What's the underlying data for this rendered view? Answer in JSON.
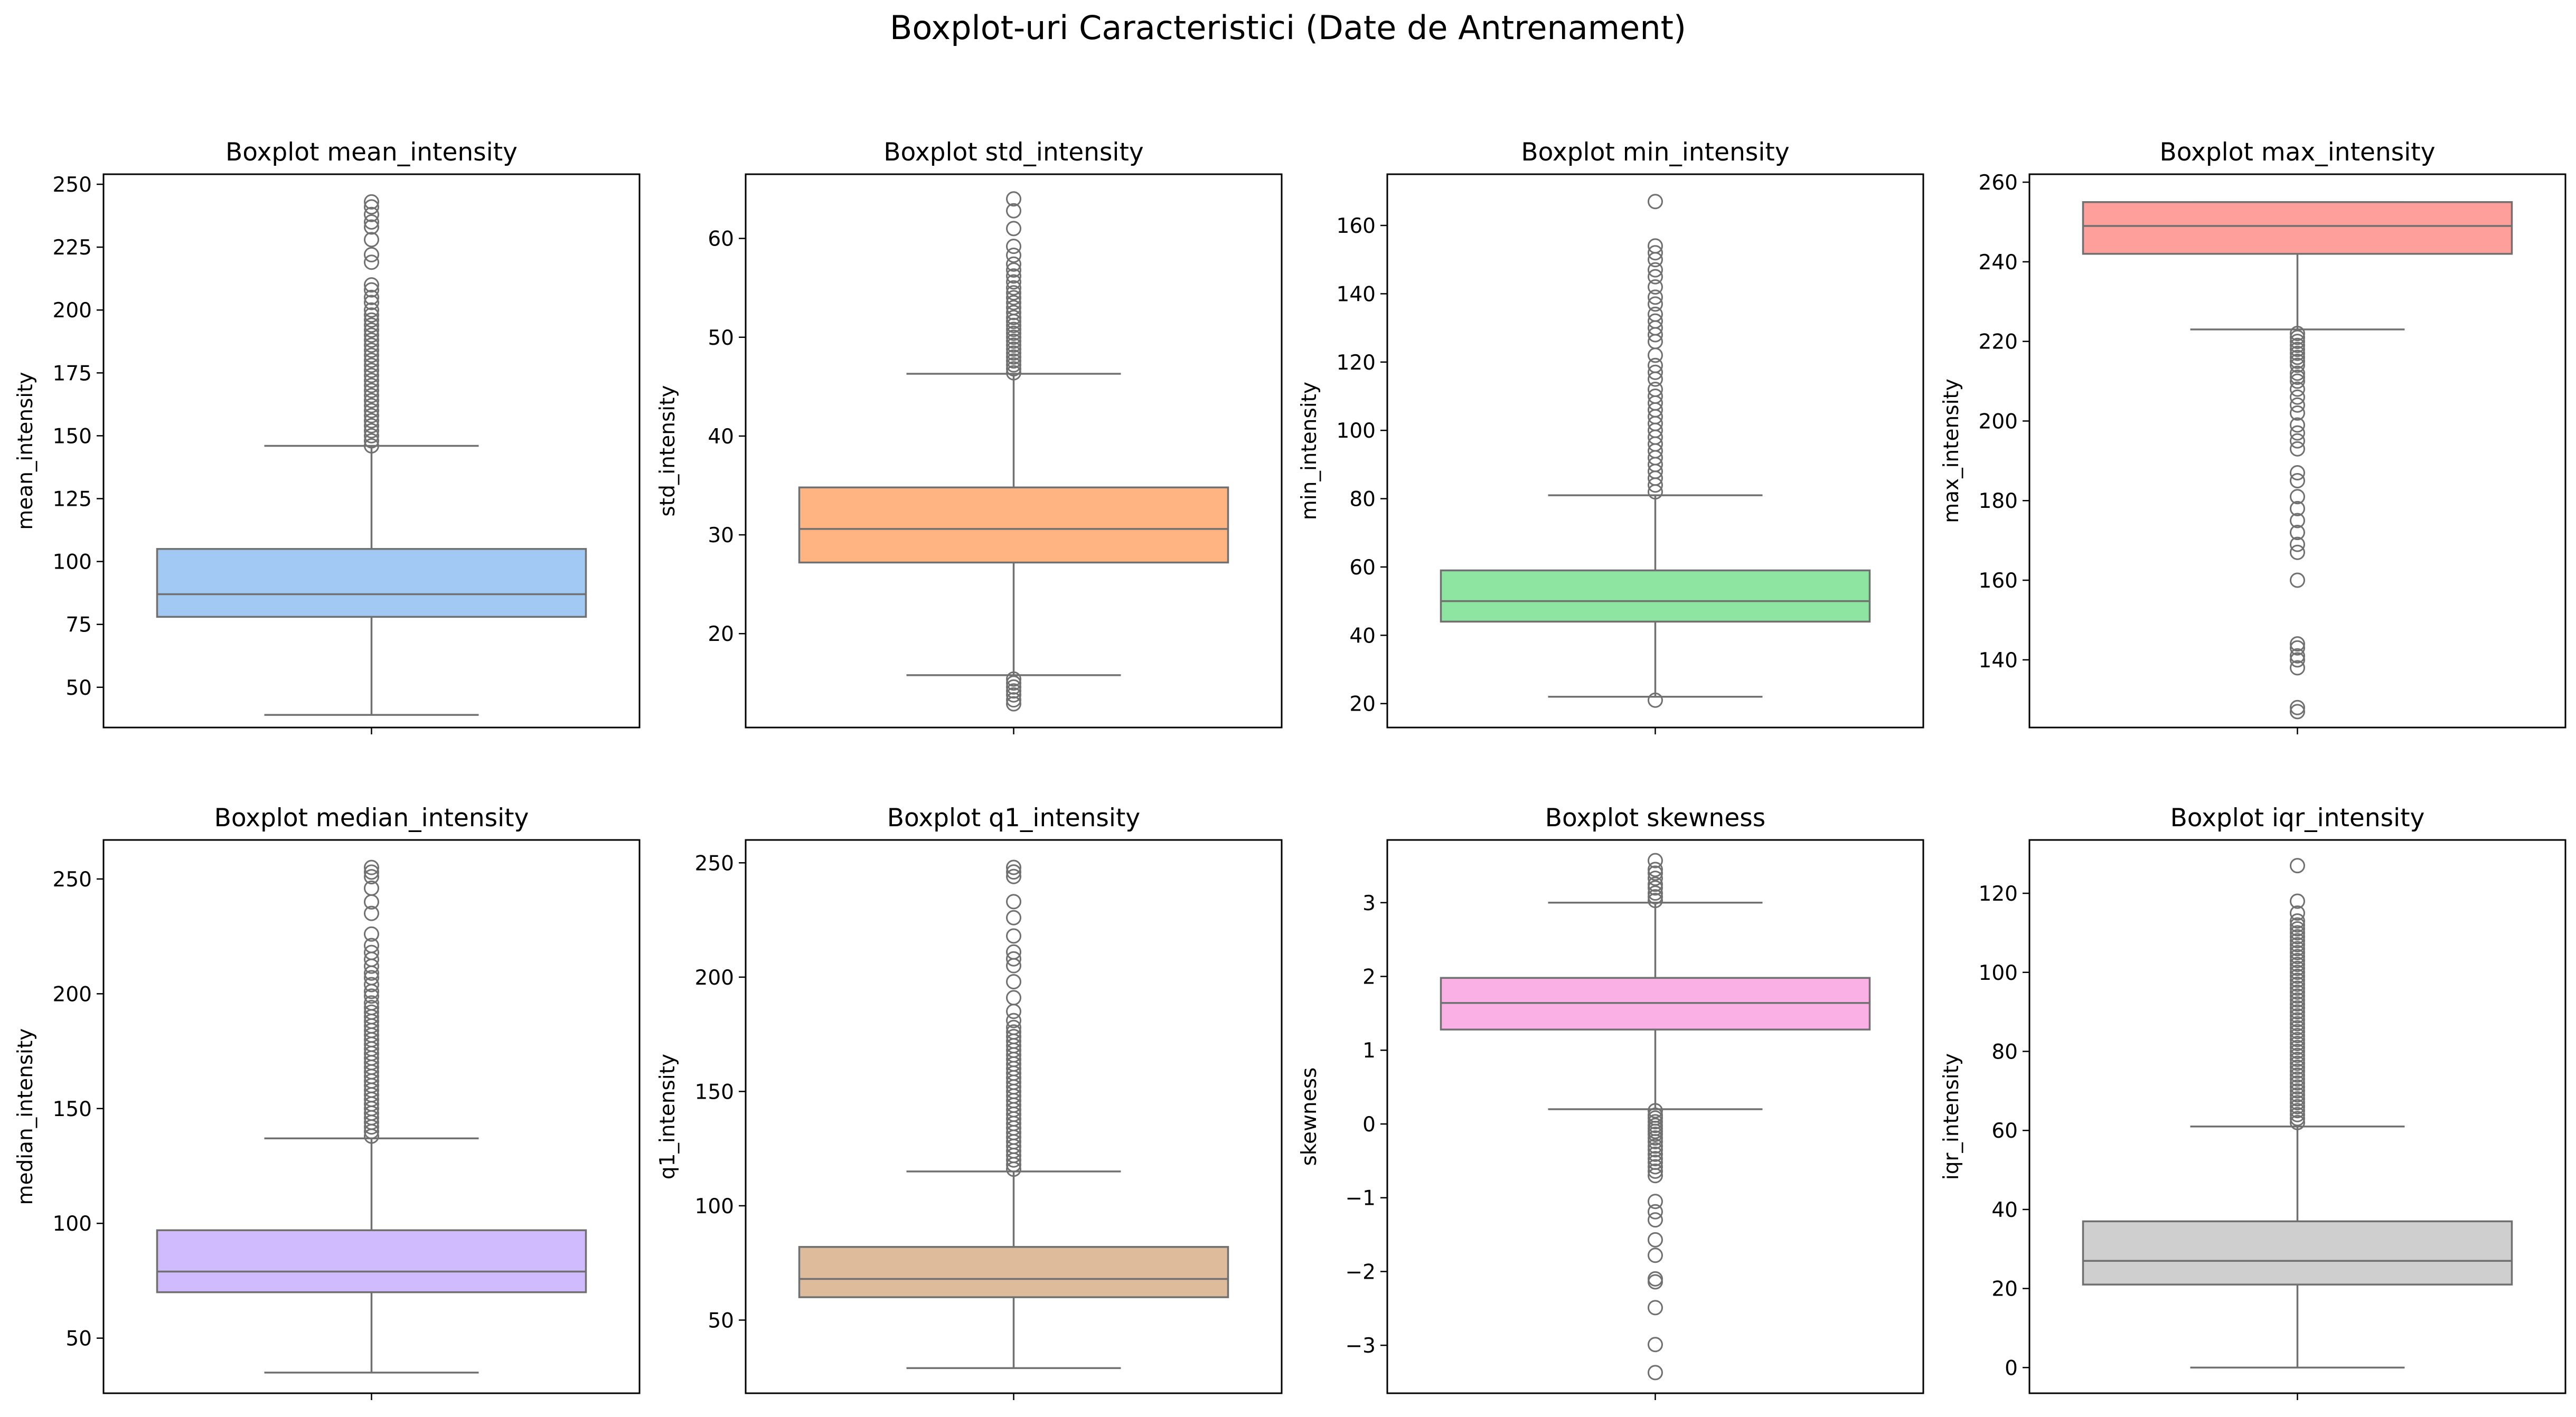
{
  "figure_title": "Boxplot-uri Caracteristici (Date de Antrenament)",
  "chart_data": [
    {
      "type": "box",
      "title": "Boxplot mean_intensity",
      "ylabel": "mean_intensity",
      "color": "#a1c9f4",
      "ylim": [
        34,
        254
      ],
      "yticks": [
        50,
        75,
        100,
        125,
        150,
        175,
        200,
        225,
        250
      ],
      "ytick_labels": [
        "50",
        "75",
        "100",
        "125",
        "150",
        "175",
        "200",
        "225",
        "250"
      ],
      "box": {
        "whisker_low": 39,
        "q1": 78,
        "median": 87,
        "q3": 105,
        "whisker_high": 146
      },
      "outliers_high": [
        146,
        148,
        150,
        152,
        154,
        156,
        158,
        160,
        162,
        164,
        166,
        168,
        170,
        172,
        174,
        176,
        178,
        180,
        182,
        184,
        186,
        188,
        190,
        192,
        194,
        196,
        198,
        200,
        203,
        205,
        208,
        210,
        219,
        222,
        228,
        233,
        235,
        238,
        241,
        243
      ],
      "outliers_low": []
    },
    {
      "type": "box",
      "title": "Boxplot std_intensity",
      "ylabel": "std_intensity",
      "color": "#ffb482",
      "ylim": [
        10.5,
        66.5
      ],
      "yticks": [
        20,
        30,
        40,
        50,
        60
      ],
      "ytick_labels": [
        "20",
        "30",
        "40",
        "50",
        "60"
      ],
      "box": {
        "whisker_low": 15.8,
        "q1": 27.2,
        "median": 30.6,
        "q3": 34.8,
        "whisker_high": 46.3
      },
      "outliers_high": [
        46.4,
        46.8,
        47.2,
        47.6,
        48,
        48.4,
        48.8,
        49.2,
        49.6,
        50,
        50.4,
        50.8,
        51.2,
        51.6,
        52,
        52.5,
        53,
        53.5,
        54,
        54.5,
        55,
        55.6,
        56.2,
        56.8,
        57.4,
        58.3,
        59.2,
        61,
        62.8,
        64
      ],
      "outliers_low": [
        15.4,
        15,
        14.6,
        14.2,
        13.8,
        13.3,
        12.9
      ]
    },
    {
      "type": "box",
      "title": "Boxplot min_intensity",
      "ylabel": "min_intensity",
      "color": "#8de5a1",
      "ylim": [
        13,
        175
      ],
      "yticks": [
        20,
        40,
        60,
        80,
        100,
        120,
        140,
        160
      ],
      "ytick_labels": [
        "20",
        "40",
        "60",
        "80",
        "100",
        "120",
        "140",
        "160"
      ],
      "box": {
        "whisker_low": 22,
        "q1": 44,
        "median": 50,
        "q3": 59,
        "whisker_high": 81
      },
      "outliers_high": [
        82,
        84,
        86,
        88,
        90,
        92,
        94,
        96,
        98,
        100,
        102,
        104,
        106,
        108,
        110,
        112,
        115,
        117,
        119,
        122,
        126,
        128,
        130,
        132,
        134,
        137,
        139,
        142,
        145,
        147,
        150,
        152,
        154,
        167
      ],
      "outliers_low": [
        21
      ]
    },
    {
      "type": "box",
      "title": "Boxplot max_intensity",
      "ylabel": "max_intensity",
      "color": "#ff9f9b",
      "ylim": [
        123,
        262
      ],
      "yticks": [
        140,
        160,
        180,
        200,
        220,
        240,
        260
      ],
      "ytick_labels": [
        "140",
        "160",
        "180",
        "200",
        "220",
        "240",
        "260"
      ],
      "box": {
        "whisker_low": 223,
        "q1": 242,
        "median": 249,
        "q3": 255,
        "whisker_high": 255
      },
      "outliers_high": [],
      "outliers_low": [
        222,
        221,
        220,
        219,
        218,
        217,
        216,
        215,
        214,
        212,
        211,
        210,
        208,
        206,
        204,
        202,
        199,
        197,
        195,
        193,
        187,
        185,
        181,
        178,
        175,
        172,
        169,
        167,
        160,
        144,
        143,
        141,
        140,
        138,
        128,
        127
      ]
    },
    {
      "type": "box",
      "title": "Boxplot median_intensity",
      "ylabel": "median_intensity",
      "color": "#d0bbff",
      "ylim": [
        26,
        267
      ],
      "yticks": [
        50,
        100,
        150,
        200,
        250
      ],
      "ytick_labels": [
        "50",
        "100",
        "150",
        "200",
        "250"
      ],
      "box": {
        "whisker_low": 35,
        "q1": 70,
        "median": 79,
        "q3": 97,
        "whisker_high": 137
      },
      "outliers_high": [
        138,
        140,
        142,
        144,
        146,
        148,
        150,
        152,
        154,
        156,
        158,
        160,
        162,
        164,
        166,
        168,
        170,
        172,
        174,
        176,
        178,
        180,
        182,
        184,
        186,
        188,
        190,
        192,
        194,
        196,
        199,
        201,
        204,
        207,
        209,
        212,
        215,
        218,
        221,
        226,
        235,
        240,
        246,
        251,
        253,
        255
      ],
      "outliers_low": []
    },
    {
      "type": "box",
      "title": "Boxplot q1_intensity",
      "ylabel": "q1_intensity",
      "color": "#debb9b",
      "ylim": [
        18,
        260
      ],
      "yticks": [
        50,
        100,
        150,
        200,
        250
      ],
      "ytick_labels": [
        "50",
        "100",
        "150",
        "200",
        "250"
      ],
      "box": {
        "whisker_low": 29,
        "q1": 60,
        "median": 68,
        "q3": 82,
        "whisker_high": 115
      },
      "outliers_high": [
        116,
        118,
        120,
        122,
        124,
        126,
        128,
        130,
        132,
        134,
        136,
        138,
        140,
        142,
        144,
        146,
        148,
        150,
        152,
        154,
        156,
        158,
        160,
        162,
        164,
        166,
        168,
        170,
        172,
        174,
        176,
        178,
        181,
        185,
        191,
        198,
        205,
        208,
        211,
        218,
        226,
        233,
        244,
        246,
        248
      ],
      "outliers_low": []
    },
    {
      "type": "box",
      "title": "Boxplot skewness",
      "ylabel": "skewness",
      "color": "#fab0e4",
      "ylim": [
        -3.65,
        3.85
      ],
      "yticks": [
        -3,
        -2,
        -1,
        0,
        1,
        2,
        3
      ],
      "ytick_labels": [
        "−3",
        "−2",
        "−1",
        "0",
        "1",
        "2",
        "3"
      ],
      "box": {
        "whisker_low": 0.2,
        "q1": 1.28,
        "median": 1.64,
        "q3": 1.98,
        "whisker_high": 3.0
      },
      "outliers_high": [
        3.03,
        3.08,
        3.13,
        3.2,
        3.25,
        3.33,
        3.4,
        3.45,
        3.57
      ],
      "outliers_low": [
        0.18,
        0.12,
        0.08,
        0.03,
        -0.02,
        -0.06,
        -0.1,
        -0.14,
        -0.19,
        -0.24,
        -0.3,
        -0.35,
        -0.41,
        -0.47,
        -0.52,
        -0.58,
        -0.64,
        -0.7,
        -1.05,
        -1.19,
        -1.3,
        -1.57,
        -1.78,
        -2.1,
        -2.14,
        -2.49,
        -2.99,
        -3.37
      ]
    },
    {
      "type": "box",
      "title": "Boxplot iqr_intensity",
      "ylabel": "iqr_intensity",
      "color": "#cfcfcf",
      "ylim": [
        -6.5,
        133.5
      ],
      "yticks": [
        0,
        20,
        40,
        60,
        80,
        100,
        120
      ],
      "ytick_labels": [
        "0",
        "20",
        "40",
        "60",
        "80",
        "100",
        "120"
      ],
      "box": {
        "whisker_low": 0,
        "q1": 21,
        "median": 27,
        "q3": 37,
        "whisker_high": 61
      },
      "outliers_high": [
        62,
        63,
        64,
        65,
        66,
        67,
        68,
        69,
        70,
        71,
        72,
        73,
        74,
        75,
        76,
        77,
        78,
        79,
        80,
        81,
        82,
        83,
        84,
        85,
        86,
        87,
        88,
        89,
        90,
        91,
        92,
        93,
        94,
        95,
        96,
        97,
        98,
        99,
        100,
        101,
        102,
        103,
        104,
        105,
        106,
        107,
        108,
        109,
        110,
        111,
        112,
        113,
        115,
        118,
        127
      ],
      "outliers_low": []
    }
  ]
}
